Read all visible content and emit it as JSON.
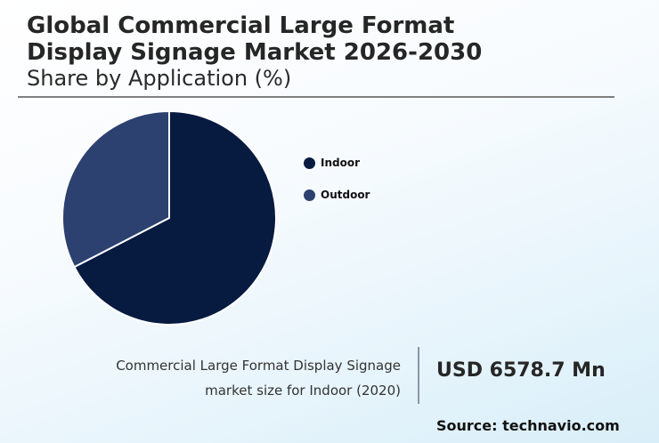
{
  "header": {
    "title_line1": "Global Commercial Large Format",
    "title_line2": "Display Signage Market 2026-2030",
    "subtitle": "Share by Application (%)"
  },
  "chart_data": {
    "type": "pie",
    "title": "Global Commercial Large Format Display Signage Market 2026-2030",
    "subtitle": "Share by Application (%)",
    "categories": [
      "Indoor",
      "Outdoor"
    ],
    "values": [
      67.4,
      32.6
    ],
    "colors": [
      "#071a40",
      "#2c4170"
    ],
    "legend_position": "right",
    "start_angle": "12 o'clock, clockwise"
  },
  "legend": {
    "items": [
      {
        "label": "Indoor",
        "color": "#071a40"
      },
      {
        "label": "Outdoor",
        "color": "#2c4170"
      }
    ]
  },
  "footer": {
    "desc_line1": "Commercial Large Format Display Signage",
    "desc_line2": "market size for Indoor (2020)",
    "value": "USD 6578.7 Mn",
    "source": "Source: technavio.com"
  }
}
